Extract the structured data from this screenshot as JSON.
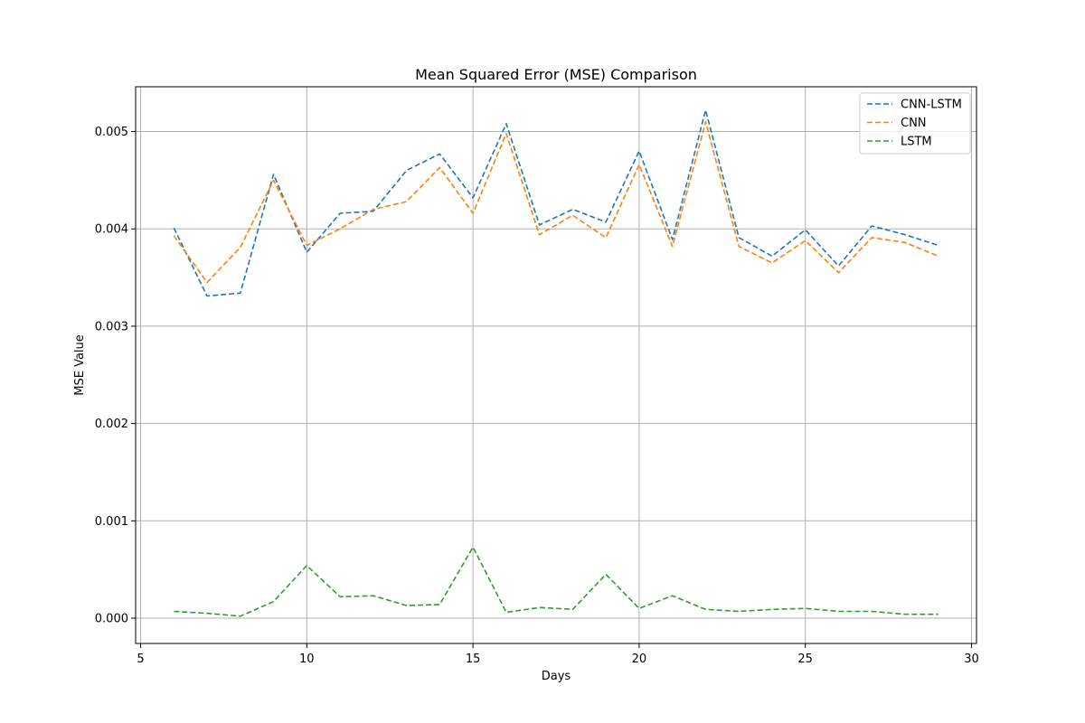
{
  "chart_data": {
    "type": "line",
    "title": "Mean Squared Error (MSE) Comparison",
    "xlabel": "Days",
    "ylabel": "MSE Value",
    "xlim": [
      4.85,
      30.15
    ],
    "ylim": [
      -0.00026,
      0.00546
    ],
    "xticks": [
      5,
      10,
      15,
      20,
      25,
      30
    ],
    "xtick_labels": [
      "5",
      "10",
      "15",
      "20",
      "25",
      "30"
    ],
    "yticks": [
      0,
      0.001,
      0.002,
      0.003,
      0.004,
      0.005
    ],
    "ytick_labels": [
      "0.000",
      "0.001",
      "0.002",
      "0.003",
      "0.004",
      "0.005"
    ],
    "grid": true,
    "legend_position": "top-right",
    "x": [
      6,
      7,
      8,
      9,
      10,
      11,
      12,
      13,
      14,
      15,
      16,
      17,
      18,
      19,
      20,
      21,
      22,
      23,
      24,
      25,
      26,
      27,
      28,
      29
    ],
    "series": [
      {
        "name": "CNN-LSTM",
        "color": "#1f77b4",
        "values": [
          0.00401,
          0.00331,
          0.00334,
          0.00456,
          0.00376,
          0.00416,
          0.00418,
          0.0046,
          0.00477,
          0.00432,
          0.00508,
          0.00404,
          0.0042,
          0.00407,
          0.0048,
          0.00389,
          0.00522,
          0.00391,
          0.00372,
          0.00399,
          0.00362,
          0.00403,
          0.00394,
          0.00383
        ]
      },
      {
        "name": "CNN",
        "color": "#ff7f0e",
        "values": [
          0.00393,
          0.00345,
          0.00381,
          0.0045,
          0.00383,
          0.004,
          0.0042,
          0.00428,
          0.00463,
          0.00416,
          0.00498,
          0.00394,
          0.00414,
          0.00391,
          0.00466,
          0.00382,
          0.0051,
          0.00382,
          0.00365,
          0.00388,
          0.00355,
          0.00391,
          0.00386,
          0.00372
        ]
      },
      {
        "name": "LSTM",
        "color": "#2ca02c",
        "values": [
          7e-05,
          5e-05,
          2e-05,
          0.00017,
          0.00054,
          0.00022,
          0.00023,
          0.00013,
          0.00014,
          0.00073,
          6e-05,
          0.00011,
          9e-05,
          0.00045,
          0.0001,
          0.00023,
          9e-05,
          7e-05,
          9e-05,
          0.0001,
          7e-05,
          7e-05,
          4e-05,
          4e-05
        ]
      }
    ]
  }
}
